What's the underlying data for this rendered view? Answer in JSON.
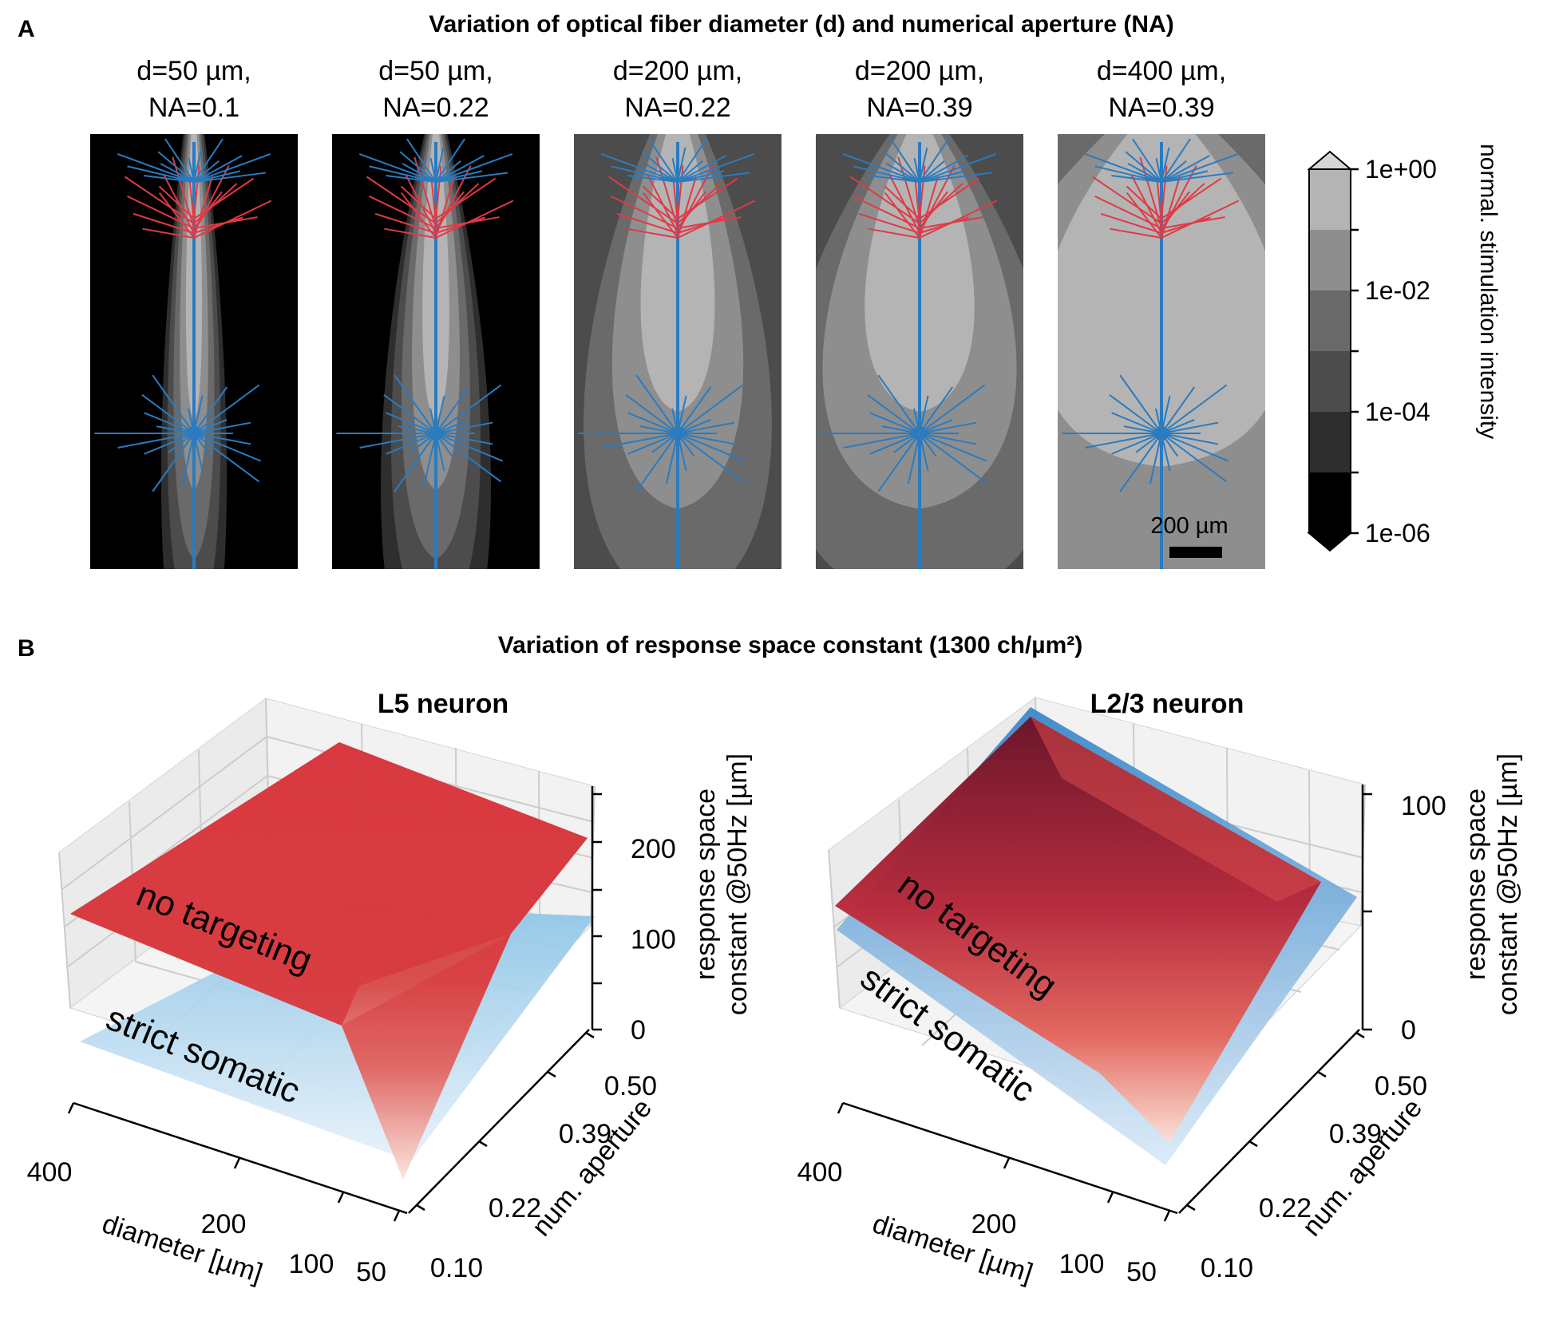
{
  "panel_a": {
    "letter": "A",
    "title": "Variation of optical fiber diameter (d) and numerical aperture (NA)",
    "scale_bar_label": "200 µm",
    "colorbar": {
      "label": "normal. stimulation intensity",
      "ticks": [
        "1e+00",
        "1e-02",
        "1e-04",
        "1e-06"
      ],
      "levels": [
        -6,
        -5,
        -4,
        -3,
        -2,
        -1,
        0
      ],
      "colors": [
        "#000000",
        "#2e2e2e",
        "#4c4c4c",
        "#6a6a6a",
        "#8e8e8e",
        "#b4b4b4"
      ]
    },
    "colors": {
      "apical_tuft": "#e03a45",
      "neuron": "#2a7bc0"
    }
  },
  "panel_b": {
    "letter": "B",
    "title": "Variation of response space constant (1300 ch/µm²)"
  },
  "chart_data": [
    {
      "type": "heatmap",
      "panel": "A",
      "title": "Variation of optical fiber diameter (d) and numerical aperture (NA)",
      "subplots": [
        {
          "title_line1": "d=50 µm,",
          "title_line2": "NA=0.1",
          "d_um": 50,
          "na": 0.1
        },
        {
          "title_line1": "d=50 µm,",
          "title_line2": "NA=0.22",
          "d_um": 50,
          "na": 0.22
        },
        {
          "title_line1": "d=200 µm,",
          "title_line2": "NA=0.22",
          "d_um": 200,
          "na": 0.22
        },
        {
          "title_line1": "d=200 µm,",
          "title_line2": "NA=0.39",
          "d_um": 200,
          "na": 0.39
        },
        {
          "title_line1": "d=400 µm,",
          "title_line2": "NA=0.39",
          "d_um": 400,
          "na": 0.39
        }
      ],
      "colorbar_label": "normal. stimulation intensity",
      "colorbar_ticks": [
        "1e+00",
        "1e-02",
        "1e-04",
        "1e-06"
      ],
      "scale": "log"
    },
    {
      "type": "surface",
      "panel": "B",
      "title": "L5 neuron",
      "xlabel": "diameter [µm]",
      "ylabel": "num. aperture",
      "zlabel_line1": "response space",
      "zlabel_line2": "constant @50Hz [µm]",
      "x_ticks": [
        "400",
        "200",
        "100",
        "50"
      ],
      "y_ticks": [
        "0.10",
        "0.22",
        "0.39",
        "0.50"
      ],
      "z_ticks": [
        "0",
        "100",
        "200"
      ],
      "zlim": [
        0,
        260
      ],
      "series": [
        {
          "name": "no targeting",
          "color": "#d7323c",
          "corners": {
            "d400_na010": 140,
            "d50_na010": 0,
            "d400_na050": 205,
            "d50_na050": 195
          },
          "fold_near": {
            "d100_na010": 90
          }
        },
        {
          "name": "strict somatic",
          "color": "#a8d2ee",
          "corners": {
            "d400_na010": 45,
            "d50_na010": 5,
            "d400_na050": 160,
            "d50_na050": 100
          }
        }
      ]
    },
    {
      "type": "surface",
      "panel": "B",
      "title": "L2/3 neuron",
      "xlabel": "diameter [µm]",
      "ylabel": "num. aperture",
      "zlabel_line1": "response space",
      "zlabel_line2": "constant @50Hz [µm]",
      "x_ticks": [
        "400",
        "200",
        "100",
        "50"
      ],
      "y_ticks": [
        "0.10",
        "0.22",
        "0.39",
        "0.50"
      ],
      "z_ticks": [
        "0",
        "100"
      ],
      "zlim": [
        0,
        105
      ],
      "series": [
        {
          "name": "no targeting",
          "color": "#9b1c2d",
          "corners": {
            "d400_na010": 55,
            "d50_na010": 0,
            "d400_na050": 108,
            "d50_na050": 52
          }
        },
        {
          "name": "strict somatic",
          "color": "#3a8ccf",
          "corners": {
            "d400_na010": 50,
            "d50_na010": 5,
            "d400_na050": 110,
            "d50_na050": 45
          }
        }
      ]
    }
  ]
}
